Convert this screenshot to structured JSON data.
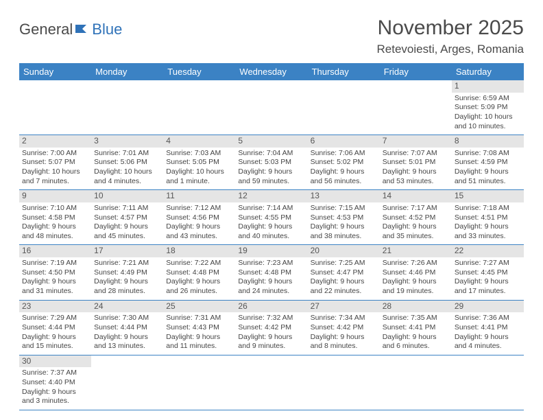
{
  "logo": {
    "text1": "General",
    "text2": "Blue"
  },
  "title": "November 2025",
  "location": "Retevoiesti, Arges, Romania",
  "colors": {
    "header_bg": "#3b82c4",
    "header_fg": "#ffffff",
    "daynum_bg": "#e5e5e5",
    "border": "#3b82c4",
    "logo_blue": "#2f72b8",
    "text": "#4a4a4a"
  },
  "days_of_week": [
    "Sunday",
    "Monday",
    "Tuesday",
    "Wednesday",
    "Thursday",
    "Friday",
    "Saturday"
  ],
  "weeks": [
    [
      null,
      null,
      null,
      null,
      null,
      null,
      {
        "n": "1",
        "sunrise": "Sunrise: 6:59 AM",
        "sunset": "Sunset: 5:09 PM",
        "daylight": "Daylight: 10 hours and 10 minutes."
      }
    ],
    [
      {
        "n": "2",
        "sunrise": "Sunrise: 7:00 AM",
        "sunset": "Sunset: 5:07 PM",
        "daylight": "Daylight: 10 hours and 7 minutes."
      },
      {
        "n": "3",
        "sunrise": "Sunrise: 7:01 AM",
        "sunset": "Sunset: 5:06 PM",
        "daylight": "Daylight: 10 hours and 4 minutes."
      },
      {
        "n": "4",
        "sunrise": "Sunrise: 7:03 AM",
        "sunset": "Sunset: 5:05 PM",
        "daylight": "Daylight: 10 hours and 1 minute."
      },
      {
        "n": "5",
        "sunrise": "Sunrise: 7:04 AM",
        "sunset": "Sunset: 5:03 PM",
        "daylight": "Daylight: 9 hours and 59 minutes."
      },
      {
        "n": "6",
        "sunrise": "Sunrise: 7:06 AM",
        "sunset": "Sunset: 5:02 PM",
        "daylight": "Daylight: 9 hours and 56 minutes."
      },
      {
        "n": "7",
        "sunrise": "Sunrise: 7:07 AM",
        "sunset": "Sunset: 5:01 PM",
        "daylight": "Daylight: 9 hours and 53 minutes."
      },
      {
        "n": "8",
        "sunrise": "Sunrise: 7:08 AM",
        "sunset": "Sunset: 4:59 PM",
        "daylight": "Daylight: 9 hours and 51 minutes."
      }
    ],
    [
      {
        "n": "9",
        "sunrise": "Sunrise: 7:10 AM",
        "sunset": "Sunset: 4:58 PM",
        "daylight": "Daylight: 9 hours and 48 minutes."
      },
      {
        "n": "10",
        "sunrise": "Sunrise: 7:11 AM",
        "sunset": "Sunset: 4:57 PM",
        "daylight": "Daylight: 9 hours and 45 minutes."
      },
      {
        "n": "11",
        "sunrise": "Sunrise: 7:12 AM",
        "sunset": "Sunset: 4:56 PM",
        "daylight": "Daylight: 9 hours and 43 minutes."
      },
      {
        "n": "12",
        "sunrise": "Sunrise: 7:14 AM",
        "sunset": "Sunset: 4:55 PM",
        "daylight": "Daylight: 9 hours and 40 minutes."
      },
      {
        "n": "13",
        "sunrise": "Sunrise: 7:15 AM",
        "sunset": "Sunset: 4:53 PM",
        "daylight": "Daylight: 9 hours and 38 minutes."
      },
      {
        "n": "14",
        "sunrise": "Sunrise: 7:17 AM",
        "sunset": "Sunset: 4:52 PM",
        "daylight": "Daylight: 9 hours and 35 minutes."
      },
      {
        "n": "15",
        "sunrise": "Sunrise: 7:18 AM",
        "sunset": "Sunset: 4:51 PM",
        "daylight": "Daylight: 9 hours and 33 minutes."
      }
    ],
    [
      {
        "n": "16",
        "sunrise": "Sunrise: 7:19 AM",
        "sunset": "Sunset: 4:50 PM",
        "daylight": "Daylight: 9 hours and 31 minutes."
      },
      {
        "n": "17",
        "sunrise": "Sunrise: 7:21 AM",
        "sunset": "Sunset: 4:49 PM",
        "daylight": "Daylight: 9 hours and 28 minutes."
      },
      {
        "n": "18",
        "sunrise": "Sunrise: 7:22 AM",
        "sunset": "Sunset: 4:48 PM",
        "daylight": "Daylight: 9 hours and 26 minutes."
      },
      {
        "n": "19",
        "sunrise": "Sunrise: 7:23 AM",
        "sunset": "Sunset: 4:48 PM",
        "daylight": "Daylight: 9 hours and 24 minutes."
      },
      {
        "n": "20",
        "sunrise": "Sunrise: 7:25 AM",
        "sunset": "Sunset: 4:47 PM",
        "daylight": "Daylight: 9 hours and 22 minutes."
      },
      {
        "n": "21",
        "sunrise": "Sunrise: 7:26 AM",
        "sunset": "Sunset: 4:46 PM",
        "daylight": "Daylight: 9 hours and 19 minutes."
      },
      {
        "n": "22",
        "sunrise": "Sunrise: 7:27 AM",
        "sunset": "Sunset: 4:45 PM",
        "daylight": "Daylight: 9 hours and 17 minutes."
      }
    ],
    [
      {
        "n": "23",
        "sunrise": "Sunrise: 7:29 AM",
        "sunset": "Sunset: 4:44 PM",
        "daylight": "Daylight: 9 hours and 15 minutes."
      },
      {
        "n": "24",
        "sunrise": "Sunrise: 7:30 AM",
        "sunset": "Sunset: 4:44 PM",
        "daylight": "Daylight: 9 hours and 13 minutes."
      },
      {
        "n": "25",
        "sunrise": "Sunrise: 7:31 AM",
        "sunset": "Sunset: 4:43 PM",
        "daylight": "Daylight: 9 hours and 11 minutes."
      },
      {
        "n": "26",
        "sunrise": "Sunrise: 7:32 AM",
        "sunset": "Sunset: 4:42 PM",
        "daylight": "Daylight: 9 hours and 9 minutes."
      },
      {
        "n": "27",
        "sunrise": "Sunrise: 7:34 AM",
        "sunset": "Sunset: 4:42 PM",
        "daylight": "Daylight: 9 hours and 8 minutes."
      },
      {
        "n": "28",
        "sunrise": "Sunrise: 7:35 AM",
        "sunset": "Sunset: 4:41 PM",
        "daylight": "Daylight: 9 hours and 6 minutes."
      },
      {
        "n": "29",
        "sunrise": "Sunrise: 7:36 AM",
        "sunset": "Sunset: 4:41 PM",
        "daylight": "Daylight: 9 hours and 4 minutes."
      }
    ],
    [
      {
        "n": "30",
        "sunrise": "Sunrise: 7:37 AM",
        "sunset": "Sunset: 4:40 PM",
        "daylight": "Daylight: 9 hours and 3 minutes."
      },
      null,
      null,
      null,
      null,
      null,
      null
    ]
  ]
}
